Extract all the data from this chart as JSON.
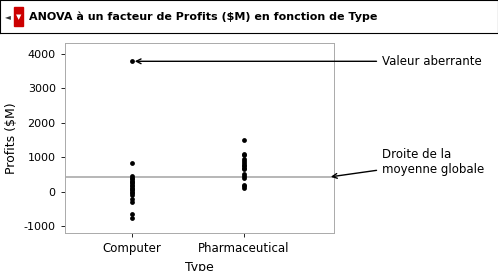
{
  "title": "ANOVA à un facteur de Profits ($M) en fonction de Type",
  "xlabel": "Type",
  "ylabel": "Profits ($M)",
  "ylim": [
    -1200,
    4300
  ],
  "yticks": [
    -1000,
    0,
    1000,
    2000,
    3000,
    4000
  ],
  "categories": [
    "Computer",
    "Pharmaceutical"
  ],
  "computer_points": [
    3780,
    820,
    450,
    400,
    360,
    320,
    280,
    240,
    200,
    160,
    120,
    80,
    40,
    0,
    -50,
    -100,
    -200,
    -300,
    -650,
    -750
  ],
  "pharma_points": [
    1500,
    1100,
    1050,
    950,
    880,
    820,
    780,
    740,
    700,
    650,
    500,
    450,
    400,
    200,
    150,
    100
  ],
  "global_mean": 420,
  "annotation_outlier_text": "Valeur aberrante",
  "annotation_mean_line1": "Droite de la",
  "annotation_mean_line2": "moyenne globale",
  "background_color": "#ffffff",
  "plot_bg_color": "#ffffff",
  "point_color": "#000000",
  "mean_line_color": "#aaaaaa",
  "title_bg_color": "#e0e0e0",
  "border_color": "#888888"
}
